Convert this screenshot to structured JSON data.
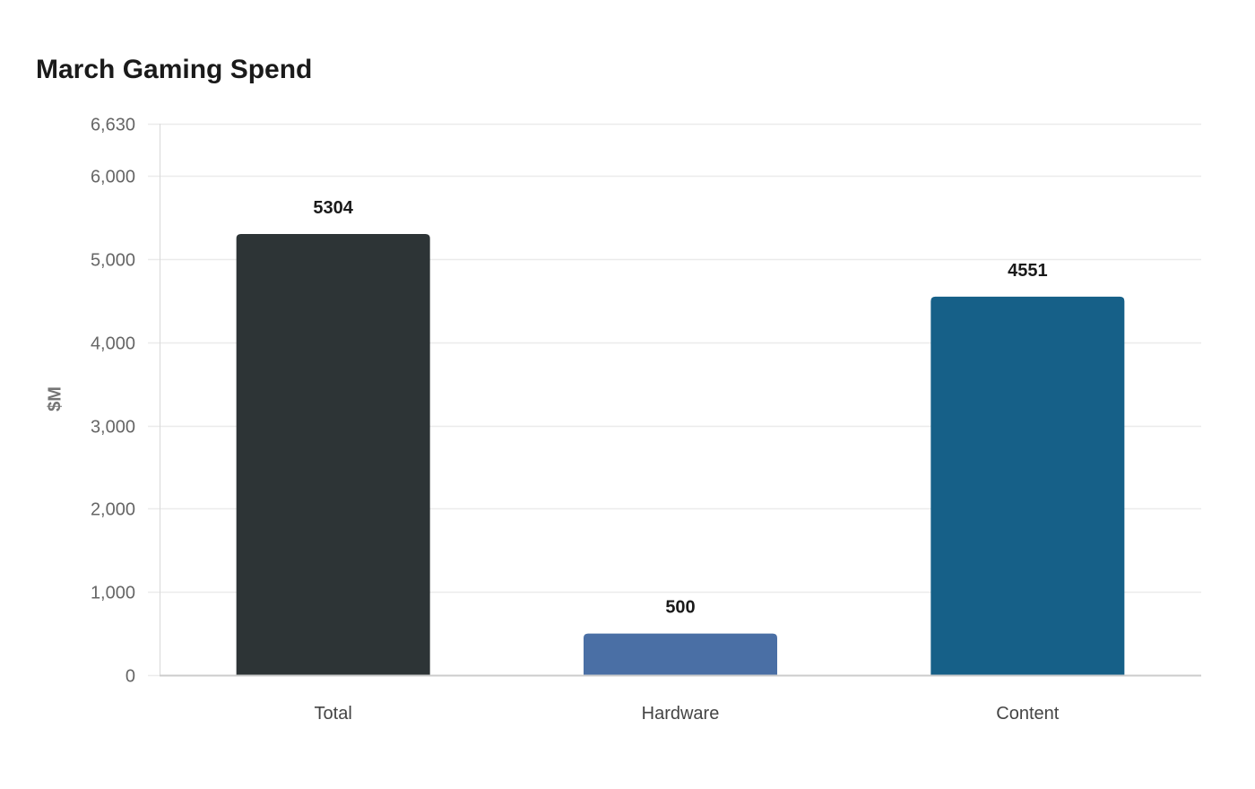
{
  "chart_data": {
    "type": "bar",
    "title": "March Gaming Spend",
    "xlabel": "",
    "ylabel": "$M",
    "categories": [
      "Total",
      "Hardware",
      "Content"
    ],
    "values": [
      5304,
      500,
      4551
    ],
    "colors": [
      "#2d3436",
      "#4a6fa5",
      "#166088"
    ],
    "ylim": [
      0,
      6630
    ],
    "yticks": [
      0,
      1000,
      2000,
      3000,
      4000,
      5000,
      6000,
      6630
    ],
    "ytick_labels": [
      "0",
      "1,000",
      "2,000",
      "3,000",
      "4,000",
      "5,000",
      "6,000",
      "6,630"
    ],
    "grid": true,
    "legend": null,
    "data_labels": [
      "5304",
      "500",
      "4551"
    ]
  }
}
